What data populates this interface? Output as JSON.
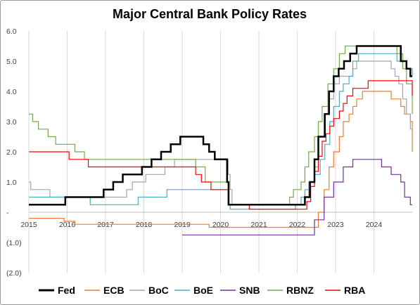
{
  "chart_data": {
    "type": "line",
    "title": "Major Central Bank Policy Rates",
    "xlabel": "",
    "ylabel": "",
    "xlim": [
      2015,
      2025
    ],
    "ylim": [
      -2,
      6
    ],
    "y_ticks": [
      {
        "value": 6,
        "label": "6.0"
      },
      {
        "value": 5,
        "label": "5.0"
      },
      {
        "value": 4,
        "label": "4.0"
      },
      {
        "value": 3,
        "label": "3.0"
      },
      {
        "value": 2,
        "label": "2.0"
      },
      {
        "value": 1,
        "label": "1.0"
      },
      {
        "value": 0,
        "label": "-"
      },
      {
        "value": -1,
        "label": "(1.0)"
      },
      {
        "value": -2,
        "label": "(2.0)"
      }
    ],
    "x_ticks": [
      {
        "value": 2015,
        "label": "2015"
      },
      {
        "value": 2016,
        "label": "2016"
      },
      {
        "value": 2017,
        "label": "2017"
      },
      {
        "value": 2018,
        "label": "2018"
      },
      {
        "value": 2019,
        "label": "2019"
      },
      {
        "value": 2020,
        "label": "2020"
      },
      {
        "value": 2021,
        "label": "2021"
      },
      {
        "value": 2022,
        "label": "2022"
      },
      {
        "value": 2023,
        "label": "2023"
      },
      {
        "value": 2024,
        "label": "2024"
      }
    ],
    "grid": {
      "vertical": true,
      "horizontal": false
    },
    "legend": "bottom",
    "series": [
      {
        "name": "Fed",
        "color": "#000000",
        "width": 2.5,
        "points": [
          [
            2015,
            0.25
          ],
          [
            2015.95,
            0.5
          ],
          [
            2016.95,
            0.75
          ],
          [
            2017.2,
            1.0
          ],
          [
            2017.45,
            1.25
          ],
          [
            2017.95,
            1.5
          ],
          [
            2018.2,
            1.75
          ],
          [
            2018.45,
            2.0
          ],
          [
            2018.7,
            2.25
          ],
          [
            2018.95,
            2.5
          ],
          [
            2019.55,
            2.25
          ],
          [
            2019.7,
            2.0
          ],
          [
            2019.85,
            1.75
          ],
          [
            2020.17,
            1.0
          ],
          [
            2020.21,
            0.25
          ],
          [
            2022.2,
            0.5
          ],
          [
            2022.33,
            1.0
          ],
          [
            2022.45,
            1.75
          ],
          [
            2022.55,
            2.5
          ],
          [
            2022.72,
            3.25
          ],
          [
            2022.83,
            4.0
          ],
          [
            2022.95,
            4.5
          ],
          [
            2023.08,
            4.75
          ],
          [
            2023.22,
            5.0
          ],
          [
            2023.38,
            5.25
          ],
          [
            2023.55,
            5.5
          ],
          [
            2024.7,
            5.0
          ],
          [
            2024.85,
            4.75
          ],
          [
            2024.95,
            4.5
          ],
          [
            2025,
            4.5
          ]
        ]
      },
      {
        "name": "ECB",
        "color": "#ED7D31",
        "width": 1.2,
        "points": [
          [
            2015,
            -0.2
          ],
          [
            2015.92,
            -0.3
          ],
          [
            2016.2,
            -0.4
          ],
          [
            2019.7,
            -0.5
          ],
          [
            2022.55,
            0.0
          ],
          [
            2022.7,
            0.75
          ],
          [
            2022.83,
            1.5
          ],
          [
            2022.95,
            2.0
          ],
          [
            2023.1,
            2.5
          ],
          [
            2023.2,
            3.0
          ],
          [
            2023.35,
            3.25
          ],
          [
            2023.45,
            3.5
          ],
          [
            2023.55,
            3.75
          ],
          [
            2023.7,
            4.0
          ],
          [
            2024.45,
            3.75
          ],
          [
            2024.7,
            3.5
          ],
          [
            2024.8,
            3.25
          ],
          [
            2024.95,
            3.0
          ],
          [
            2025,
            2.0
          ]
        ]
      },
      {
        "name": "BoC",
        "color": "#A5A5A5",
        "width": 1.2,
        "points": [
          [
            2015,
            1.0
          ],
          [
            2015.05,
            0.75
          ],
          [
            2015.55,
            0.5
          ],
          [
            2017.55,
            0.75
          ],
          [
            2017.7,
            1.0
          ],
          [
            2018.05,
            1.25
          ],
          [
            2018.55,
            1.5
          ],
          [
            2018.8,
            1.75
          ],
          [
            2020.2,
            1.25
          ],
          [
            2020.25,
            0.75
          ],
          [
            2020.3,
            0.25
          ],
          [
            2022.2,
            0.5
          ],
          [
            2022.3,
            1.0
          ],
          [
            2022.45,
            1.5
          ],
          [
            2022.55,
            2.5
          ],
          [
            2022.7,
            3.25
          ],
          [
            2022.8,
            3.75
          ],
          [
            2022.95,
            4.25
          ],
          [
            2023.1,
            4.5
          ],
          [
            2023.45,
            4.75
          ],
          [
            2023.55,
            5.0
          ],
          [
            2024.45,
            4.75
          ],
          [
            2024.55,
            4.5
          ],
          [
            2024.65,
            4.25
          ],
          [
            2024.75,
            3.75
          ],
          [
            2024.85,
            3.25
          ],
          [
            2024.95,
            2.75
          ],
          [
            2025,
            2.75
          ]
        ]
      },
      {
        "name": "BoE",
        "color": "#4BACC6",
        "width": 1.2,
        "points": [
          [
            2015,
            0.5
          ],
          [
            2016.6,
            0.25
          ],
          [
            2017.85,
            0.5
          ],
          [
            2018.6,
            0.75
          ],
          [
            2020.2,
            0.25
          ],
          [
            2020.25,
            0.1
          ],
          [
            2021.95,
            0.25
          ],
          [
            2022.1,
            0.5
          ],
          [
            2022.2,
            0.75
          ],
          [
            2022.35,
            1.0
          ],
          [
            2022.45,
            1.25
          ],
          [
            2022.6,
            1.75
          ],
          [
            2022.72,
            2.25
          ],
          [
            2022.85,
            3.0
          ],
          [
            2022.95,
            3.5
          ],
          [
            2023.1,
            4.0
          ],
          [
            2023.2,
            4.25
          ],
          [
            2023.35,
            4.5
          ],
          [
            2023.45,
            5.0
          ],
          [
            2023.6,
            5.25
          ],
          [
            2024.6,
            5.0
          ],
          [
            2024.85,
            4.75
          ],
          [
            2025,
            4.5
          ]
        ]
      },
      {
        "name": "SNB",
        "color": "#7030A0",
        "width": 1.2,
        "points": [
          [
            2019,
            -0.75
          ],
          [
            2022.45,
            -0.25
          ],
          [
            2022.7,
            0.5
          ],
          [
            2022.95,
            1.0
          ],
          [
            2023.2,
            1.5
          ],
          [
            2023.45,
            1.75
          ],
          [
            2024.2,
            1.5
          ],
          [
            2024.45,
            1.25
          ],
          [
            2024.7,
            1.0
          ],
          [
            2024.8,
            0.5
          ],
          [
            2024.95,
            0.25
          ],
          [
            2025,
            0.25
          ]
        ]
      },
      {
        "name": "RBNZ",
        "color": "#70AD47",
        "width": 1.2,
        "points": [
          [
            2015,
            3.25
          ],
          [
            2015.1,
            3.0
          ],
          [
            2015.25,
            2.75
          ],
          [
            2015.5,
            2.5
          ],
          [
            2015.7,
            2.25
          ],
          [
            2016.2,
            2.0
          ],
          [
            2016.45,
            1.75
          ],
          [
            2019.35,
            1.5
          ],
          [
            2019.6,
            1.0
          ],
          [
            2020.2,
            0.25
          ],
          [
            2021.8,
            0.5
          ],
          [
            2021.9,
            0.75
          ],
          [
            2022.1,
            1.0
          ],
          [
            2022.2,
            1.5
          ],
          [
            2022.3,
            2.0
          ],
          [
            2022.45,
            2.5
          ],
          [
            2022.55,
            3.0
          ],
          [
            2022.65,
            3.5
          ],
          [
            2022.8,
            4.25
          ],
          [
            2022.95,
            4.75
          ],
          [
            2023.1,
            5.25
          ],
          [
            2023.25,
            5.5
          ],
          [
            2024.6,
            5.25
          ],
          [
            2024.75,
            4.75
          ],
          [
            2024.85,
            4.25
          ],
          [
            2025,
            3.25
          ]
        ]
      },
      {
        "name": "RBA",
        "color": "#FF0000",
        "width": 1.2,
        "points": [
          [
            2015,
            2.0
          ],
          [
            2016.05,
            1.75
          ],
          [
            2016.55,
            1.5
          ],
          [
            2019.35,
            1.25
          ],
          [
            2019.5,
            1.0
          ],
          [
            2019.75,
            0.75
          ],
          [
            2020.2,
            0.25
          ],
          [
            2020.75,
            0.1
          ],
          [
            2022.25,
            0.35
          ],
          [
            2022.35,
            0.85
          ],
          [
            2022.45,
            1.35
          ],
          [
            2022.55,
            1.85
          ],
          [
            2022.65,
            2.35
          ],
          [
            2022.75,
            2.6
          ],
          [
            2022.85,
            2.85
          ],
          [
            2022.95,
            3.1
          ],
          [
            2023.1,
            3.35
          ],
          [
            2023.2,
            3.6
          ],
          [
            2023.3,
            3.85
          ],
          [
            2023.45,
            4.1
          ],
          [
            2023.85,
            4.35
          ],
          [
            2024.95,
            4.35
          ],
          [
            2025,
            3.85
          ]
        ]
      }
    ]
  }
}
